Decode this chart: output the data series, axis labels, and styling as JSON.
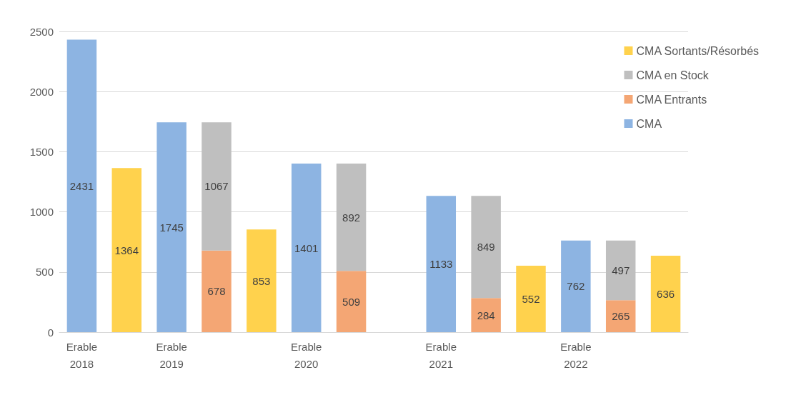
{
  "chart_data": {
    "type": "bar",
    "stacked": true,
    "data_labels": true,
    "grid": "y",
    "legend": "top right",
    "categories": [
      "Erable\n2018",
      null,
      "Erable\n2019",
      null,
      null,
      "Erable\n2020",
      null,
      null,
      "Erable\n2021",
      null,
      null,
      "Erable\n2022",
      null,
      null
    ],
    "series": [
      {
        "name": "CMA",
        "color": "#8db4e2",
        "values": [
          2431,
          null,
          1745,
          null,
          null,
          1401,
          null,
          null,
          1133,
          null,
          null,
          762,
          null,
          null
        ]
      },
      {
        "name": "CMA Entrants",
        "color": "#f4a674",
        "values": [
          null,
          null,
          null,
          678,
          null,
          null,
          509,
          null,
          null,
          284,
          null,
          null,
          265,
          null
        ]
      },
      {
        "name": "CMA en Stock",
        "color": "#bfbfbf",
        "values": [
          null,
          null,
          null,
          1067,
          null,
          null,
          892,
          null,
          null,
          849,
          null,
          null,
          497,
          null
        ]
      },
      {
        "name": "CMA Sortants/Résorbés",
        "color": "#ffd24d",
        "values": [
          null,
          1364,
          null,
          null,
          853,
          null,
          null,
          null,
          null,
          null,
          552,
          null,
          null,
          636
        ]
      }
    ],
    "ylim": [
      0,
      2500
    ],
    "yticks": [
      0,
      500,
      1000,
      1500,
      2000,
      2500
    ]
  }
}
